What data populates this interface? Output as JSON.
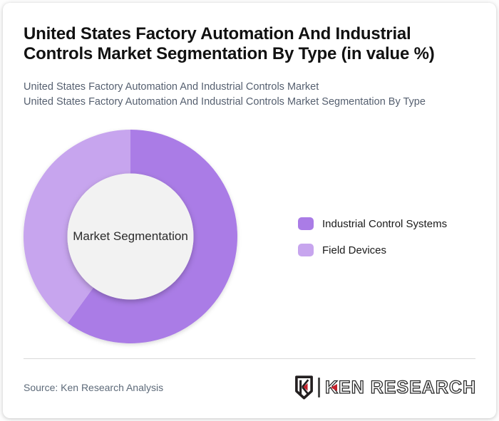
{
  "header": {
    "title": "United States Factory Automation And Industrial Controls Market Segmentation By Type (in value %)",
    "subtitles": [
      "United States Factory Automation And Industrial Controls Market",
      "United States Factory Automation And Industrial Controls Market Segmentation By Type"
    ]
  },
  "chart_data": {
    "type": "pie",
    "subtype": "donut",
    "title": "United States Factory Automation And Industrial Controls Market Segmentation By Type (in value %)",
    "categories": [
      "Industrial Control Systems",
      "Field Devices"
    ],
    "values": [
      60,
      40
    ],
    "unit": "value %",
    "colors": [
      "#aa7ce6",
      "#c7a5ee"
    ],
    "center_label": "Market Segmentation",
    "inner_circle_color": "#f2f2f2",
    "inner_radius_ratio": 0.59,
    "start_angle": 0,
    "legend_position": "right"
  },
  "footer": {
    "source": "Source: Ken Research Analysis",
    "brand": "KEN RESEARCH"
  },
  "colors": {
    "accent_dark": "#aa7ce6",
    "accent_light": "#c7a5ee",
    "logo_red": "#c5202a",
    "logo_dark": "#231f20",
    "divider": "#d9d9d9"
  }
}
